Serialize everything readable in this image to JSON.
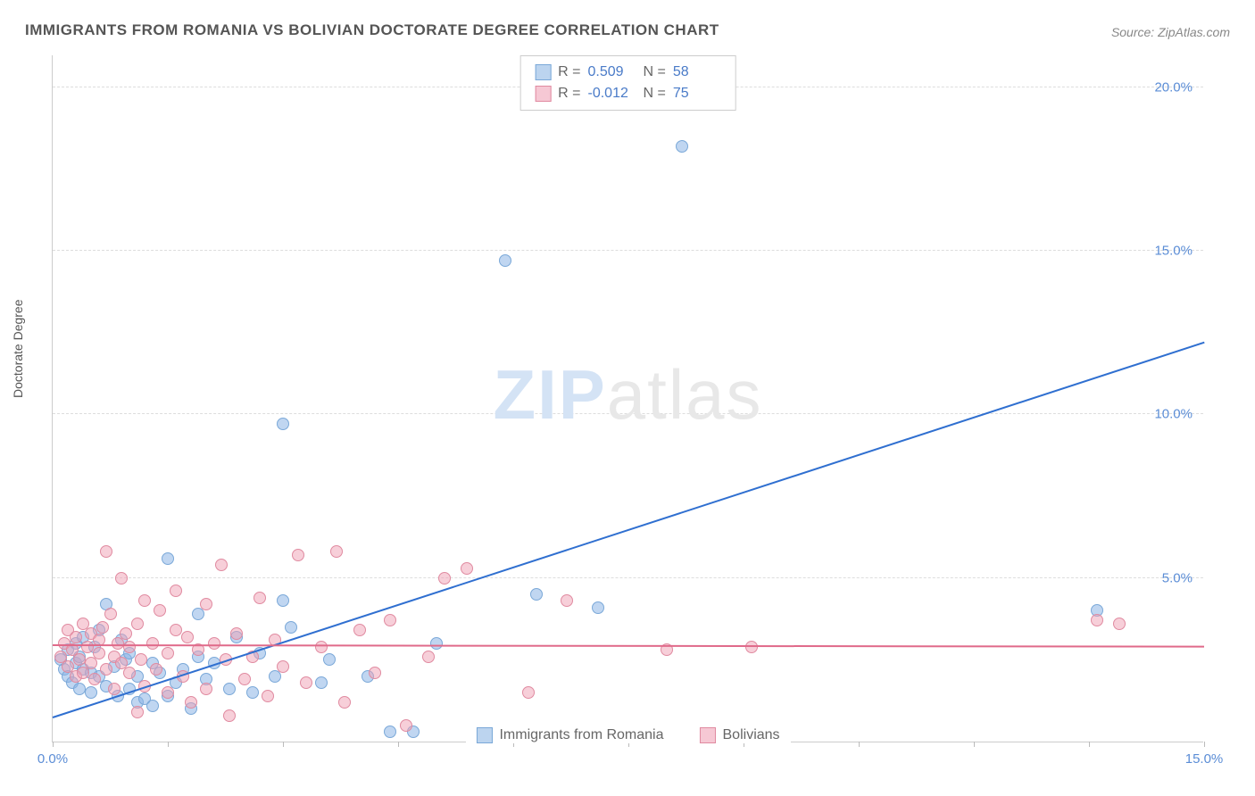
{
  "title": "IMMIGRANTS FROM ROMANIA VS BOLIVIAN DOCTORATE DEGREE CORRELATION CHART",
  "source_label": "Source: ZipAtlas.com",
  "y_axis_label": "Doctorate Degree",
  "watermark": {
    "part1": "ZIP",
    "part2": "atlas"
  },
  "chart": {
    "type": "scatter",
    "background_color": "#ffffff",
    "grid_color": "#dddddd",
    "axis_color": "#cccccc",
    "tick_label_color": "#5b8dd6",
    "xlim": [
      0,
      15
    ],
    "ylim": [
      0,
      21
    ],
    "x_ticks": [
      0,
      1.5,
      3,
      4.5,
      6,
      7.5,
      9,
      10.5,
      12,
      13.5,
      15
    ],
    "x_tick_labels": {
      "0": "0.0%",
      "15": "15.0%"
    },
    "y_gridlines": [
      5,
      10,
      15,
      20
    ],
    "y_tick_labels": {
      "5": "5.0%",
      "10": "10.0%",
      "15": "15.0%",
      "20": "20.0%"
    },
    "marker_radius": 7,
    "series": [
      {
        "name": "Immigrants from Romania",
        "fill_color": "rgba(140,180,230,0.55)",
        "stroke_color": "#7aa8d8",
        "swatch_fill": "#bcd4ef",
        "swatch_stroke": "#7aa8d8",
        "R": "0.509",
        "N": "58",
        "trend": {
          "slope": 0.764,
          "intercept": 0.8,
          "color": "#2f6fd0",
          "width": 2
        },
        "points": [
          [
            0.1,
            2.5
          ],
          [
            0.15,
            2.2
          ],
          [
            0.2,
            2.8
          ],
          [
            0.2,
            2.0
          ],
          [
            0.25,
            1.8
          ],
          [
            0.3,
            2.4
          ],
          [
            0.3,
            3.0
          ],
          [
            0.35,
            2.6
          ],
          [
            0.35,
            1.6
          ],
          [
            0.4,
            2.2
          ],
          [
            0.4,
            3.2
          ],
          [
            0.5,
            2.1
          ],
          [
            0.5,
            1.5
          ],
          [
            0.55,
            2.9
          ],
          [
            0.6,
            2.0
          ],
          [
            0.6,
            3.4
          ],
          [
            0.7,
            1.7
          ],
          [
            0.7,
            4.2
          ],
          [
            0.8,
            2.3
          ],
          [
            0.85,
            1.4
          ],
          [
            0.9,
            3.1
          ],
          [
            0.95,
            2.5
          ],
          [
            1.0,
            1.6
          ],
          [
            1.0,
            2.7
          ],
          [
            1.1,
            1.2
          ],
          [
            1.1,
            2.0
          ],
          [
            1.2,
            1.3
          ],
          [
            1.3,
            2.4
          ],
          [
            1.3,
            1.1
          ],
          [
            1.4,
            2.1
          ],
          [
            1.5,
            1.4
          ],
          [
            1.5,
            5.6
          ],
          [
            1.6,
            1.8
          ],
          [
            1.7,
            2.2
          ],
          [
            1.8,
            1.0
          ],
          [
            1.9,
            2.6
          ],
          [
            1.9,
            3.9
          ],
          [
            2.0,
            1.9
          ],
          [
            2.1,
            2.4
          ],
          [
            2.3,
            1.6
          ],
          [
            2.4,
            3.2
          ],
          [
            2.6,
            1.5
          ],
          [
            2.7,
            2.7
          ],
          [
            2.9,
            2.0
          ],
          [
            3.0,
            4.3
          ],
          [
            3.0,
            9.7
          ],
          [
            3.1,
            3.5
          ],
          [
            3.5,
            1.8
          ],
          [
            3.6,
            2.5
          ],
          [
            4.1,
            2.0
          ],
          [
            4.4,
            0.3
          ],
          [
            4.7,
            0.3
          ],
          [
            5.0,
            3.0
          ],
          [
            5.9,
            14.7
          ],
          [
            6.3,
            4.5
          ],
          [
            7.1,
            4.1
          ],
          [
            8.2,
            18.2
          ],
          [
            13.6,
            4.0
          ]
        ]
      },
      {
        "name": "Bolivians",
        "fill_color": "rgba(240,160,180,0.50)",
        "stroke_color": "#e08aa0",
        "swatch_fill": "#f6c8d4",
        "swatch_stroke": "#e08aa0",
        "R": "-0.012",
        "N": "75",
        "trend": {
          "slope": -0.003,
          "intercept": 3.0,
          "color": "#e06a8a",
          "width": 2
        },
        "points": [
          [
            0.1,
            2.6
          ],
          [
            0.15,
            3.0
          ],
          [
            0.2,
            2.3
          ],
          [
            0.2,
            3.4
          ],
          [
            0.25,
            2.8
          ],
          [
            0.3,
            2.0
          ],
          [
            0.3,
            3.2
          ],
          [
            0.35,
            2.5
          ],
          [
            0.4,
            3.6
          ],
          [
            0.4,
            2.1
          ],
          [
            0.45,
            2.9
          ],
          [
            0.5,
            3.3
          ],
          [
            0.5,
            2.4
          ],
          [
            0.55,
            1.9
          ],
          [
            0.6,
            3.1
          ],
          [
            0.6,
            2.7
          ],
          [
            0.65,
            3.5
          ],
          [
            0.7,
            2.2
          ],
          [
            0.7,
            5.8
          ],
          [
            0.75,
            3.9
          ],
          [
            0.8,
            2.6
          ],
          [
            0.8,
            1.6
          ],
          [
            0.85,
            3.0
          ],
          [
            0.9,
            5.0
          ],
          [
            0.9,
            2.4
          ],
          [
            0.95,
            3.3
          ],
          [
            1.0,
            2.1
          ],
          [
            1.0,
            2.9
          ],
          [
            1.1,
            3.6
          ],
          [
            1.1,
            0.9
          ],
          [
            1.15,
            2.5
          ],
          [
            1.2,
            4.3
          ],
          [
            1.2,
            1.7
          ],
          [
            1.3,
            3.0
          ],
          [
            1.35,
            2.2
          ],
          [
            1.4,
            4.0
          ],
          [
            1.5,
            2.7
          ],
          [
            1.5,
            1.5
          ],
          [
            1.6,
            3.4
          ],
          [
            1.6,
            4.6
          ],
          [
            1.7,
            2.0
          ],
          [
            1.75,
            3.2
          ],
          [
            1.8,
            1.2
          ],
          [
            1.9,
            2.8
          ],
          [
            2.0,
            4.2
          ],
          [
            2.0,
            1.6
          ],
          [
            2.1,
            3.0
          ],
          [
            2.2,
            5.4
          ],
          [
            2.25,
            2.5
          ],
          [
            2.3,
            0.8
          ],
          [
            2.4,
            3.3
          ],
          [
            2.5,
            1.9
          ],
          [
            2.6,
            2.6
          ],
          [
            2.7,
            4.4
          ],
          [
            2.8,
            1.4
          ],
          [
            2.9,
            3.1
          ],
          [
            3.0,
            2.3
          ],
          [
            3.2,
            5.7
          ],
          [
            3.3,
            1.8
          ],
          [
            3.5,
            2.9
          ],
          [
            3.7,
            5.8
          ],
          [
            3.8,
            1.2
          ],
          [
            4.0,
            3.4
          ],
          [
            4.2,
            2.1
          ],
          [
            4.4,
            3.7
          ],
          [
            4.6,
            0.5
          ],
          [
            4.9,
            2.6
          ],
          [
            5.1,
            5.0
          ],
          [
            5.4,
            5.3
          ],
          [
            6.2,
            1.5
          ],
          [
            6.7,
            4.3
          ],
          [
            8.0,
            2.8
          ],
          [
            9.1,
            2.9
          ],
          [
            13.6,
            3.7
          ],
          [
            13.9,
            3.6
          ]
        ]
      }
    ]
  },
  "legend_top": {
    "r_label": "R =",
    "n_label": "N ="
  },
  "legend_bottom": {
    "items": [
      {
        "label": "Immigrants from Romania",
        "series_index": 0
      },
      {
        "label": "Bolivians",
        "series_index": 1
      }
    ]
  }
}
